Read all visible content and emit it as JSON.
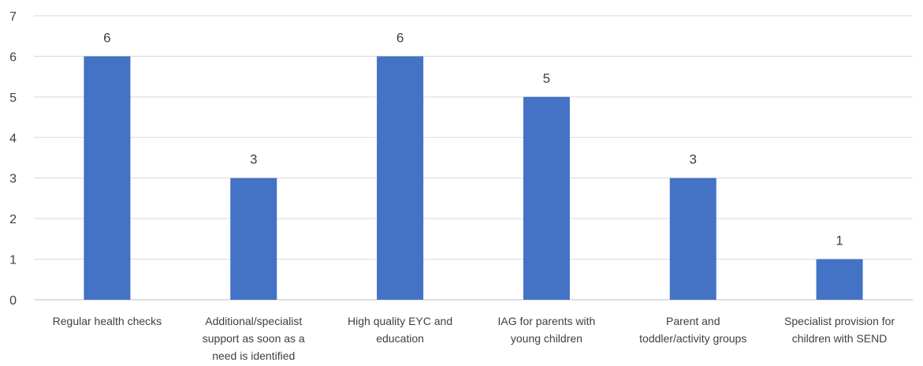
{
  "chart_data": {
    "type": "bar",
    "categories": [
      "Regular health checks",
      "Additional/specialist support as soon as a need is identified",
      "High quality EYC and education",
      "IAG for parents with young children",
      "Parent and toddler/activity groups",
      "Specialist provision for children with SEND"
    ],
    "category_label_lines": [
      [
        "Regular health checks"
      ],
      [
        "Additional/specialist",
        "support as soon as a",
        "need is identified"
      ],
      [
        "High quality EYC and",
        "education"
      ],
      [
        "IAG for parents with",
        "young children"
      ],
      [
        "Parent and",
        "toddler/activity groups"
      ],
      [
        "Specialist provision for",
        "children with SEND"
      ]
    ],
    "values": [
      6,
      3,
      6,
      5,
      3,
      1
    ],
    "data_labels": [
      "6",
      "3",
      "6",
      "5",
      "3",
      "1"
    ],
    "y_ticks": [
      "0",
      "1",
      "2",
      "3",
      "4",
      "5",
      "6",
      "7"
    ],
    "ylim": [
      0,
      7
    ],
    "grid": true,
    "legend": "none",
    "title": "",
    "xlabel": "",
    "ylabel": "",
    "bar_color": "#4472c4",
    "grid_color": "#d9d9d9",
    "text_color": "#404040"
  }
}
